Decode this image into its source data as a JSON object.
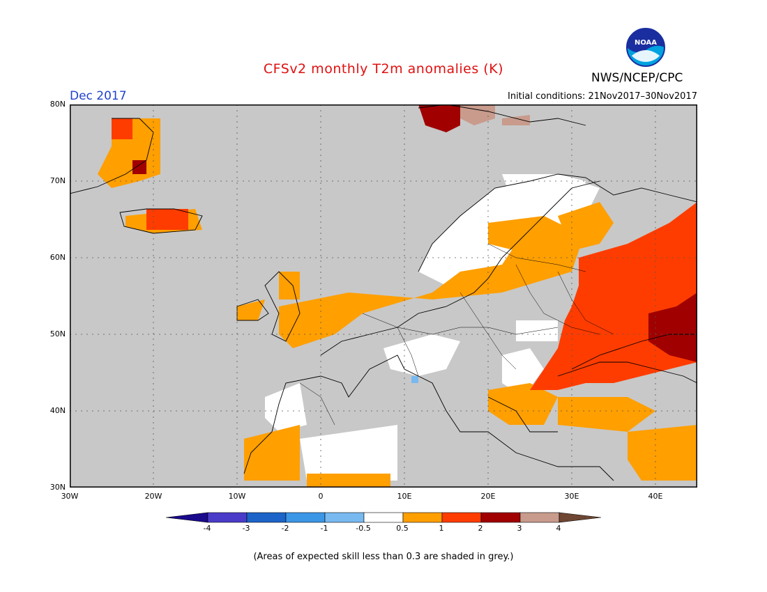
{
  "title": "CFSv2 monthly T2m anomalies (K)",
  "month": "Dec 2017",
  "initial_conditions": "Initial conditions: 21Nov2017–30Nov2017",
  "agency": "NWS/NCEP/CPC",
  "logo_text": "NOAA",
  "footnote": "(Areas of expected skill less than 0.3 are shaded in grey.)",
  "lat_labels": [
    "80N",
    "70N",
    "60N",
    "50N",
    "40N",
    "30N"
  ],
  "lon_labels": [
    "30W",
    "20W",
    "10W",
    "0",
    "10E",
    "20E",
    "30E",
    "40E"
  ],
  "colorbar": {
    "labels": [
      "-4",
      "-3",
      "-2",
      "-1",
      "-0.5",
      "0.5",
      "1",
      "2",
      "3",
      "4"
    ],
    "colors": [
      "#1a0a8c",
      "#4a3cc8",
      "#1c64c8",
      "#3c96e6",
      "#78b9f0",
      "#ffffff",
      "#ff9f00",
      "#ff3c00",
      "#a00000",
      "#c89b8c",
      "#6e4632"
    ]
  },
  "colors": {
    "land_grey": "#c8c8c8",
    "sea": "#c8c8c8",
    "coast": "#000000",
    "title_red": "#e01010",
    "month_blue": "#2040d0"
  }
}
